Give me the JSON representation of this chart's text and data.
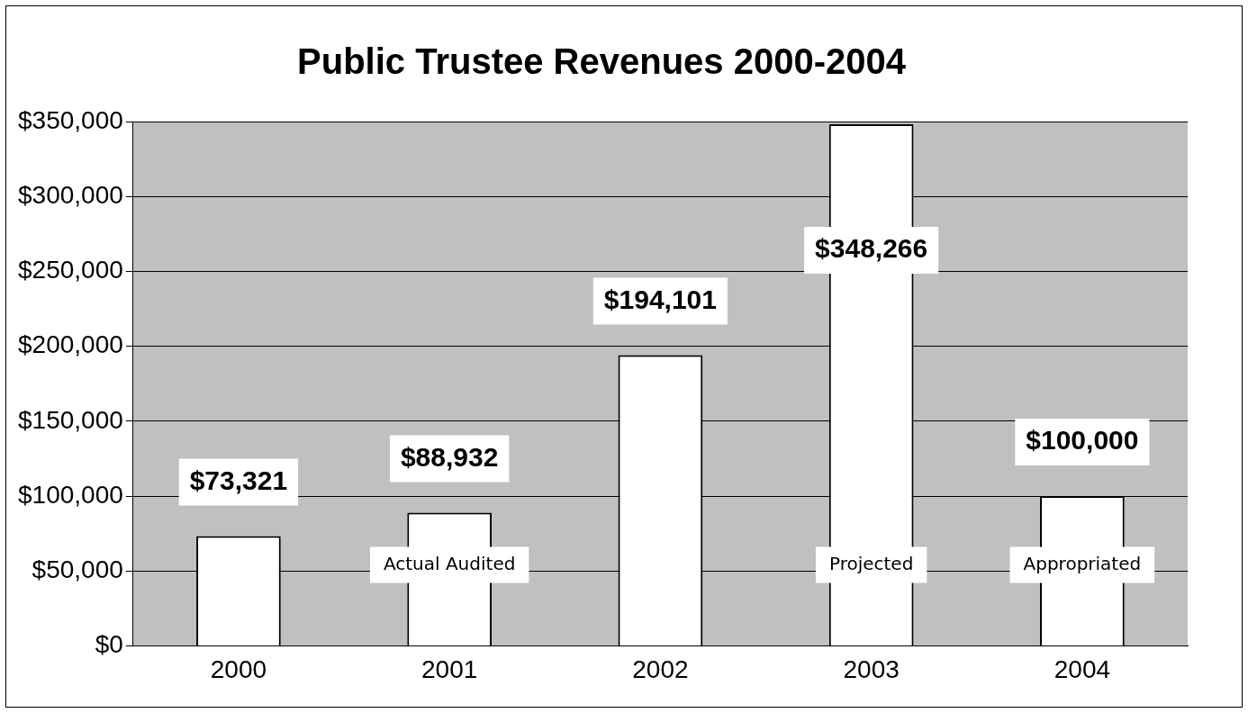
{
  "chart_data": {
    "type": "bar",
    "title": "Public Trustee Revenues 2000-2004",
    "categories": [
      "2000",
      "2001",
      "2002",
      "2003",
      "2004"
    ],
    "values": [
      73321,
      88932,
      194101,
      348266,
      100000
    ],
    "value_labels": [
      "$73,321",
      "$88,932",
      "$194,101",
      "$348,266",
      "$100,000"
    ],
    "color": "#ffffff",
    "ylim": [
      0,
      350000
    ],
    "yticks": [
      {
        "value": 0,
        "label": "$0"
      },
      {
        "value": 50000,
        "label": "$50,000"
      },
      {
        "value": 100000,
        "label": "$100,000"
      },
      {
        "value": 150000,
        "label": "$150,000"
      },
      {
        "value": 200000,
        "label": "$200,000"
      },
      {
        "value": 250000,
        "label": "$250,000"
      },
      {
        "value": 300000,
        "label": "$300,000"
      },
      {
        "value": 350000,
        "label": "$350,000"
      }
    ],
    "annotations": [
      "Actual Audited",
      "Projected",
      "Appropriated"
    ],
    "grid": "y",
    "legend": false
  }
}
